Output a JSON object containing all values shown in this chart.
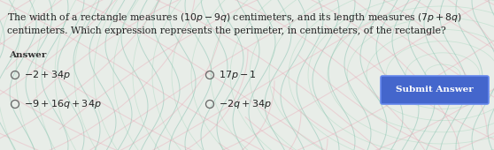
{
  "bg_color": "#e8ede8",
  "question_line1": "The width of a rectangle measures $(10p - 9q)$ centimeters, and its length measures $(7p + 8q)$",
  "question_line2": "centimeters. Which expression represents the perimeter, in centimeters, of the rectangle?",
  "answer_label": "Answer",
  "options": [
    {
      "label": "$-2 + 34p$",
      "col": 0,
      "row": 0
    },
    {
      "label": "$17p - 1$",
      "col": 1,
      "row": 0
    },
    {
      "label": "$-9 + 16q + 34p$",
      "col": 0,
      "row": 1
    },
    {
      "label": "$-2q + 34p$",
      "col": 1,
      "row": 1
    }
  ],
  "button_text": "Submit Answer",
  "button_color": "#4466cc",
  "button_text_color": "#ffffff",
  "text_color": "#222222",
  "answer_color": "#333333",
  "radio_color": "#666666",
  "figsize": [
    5.58,
    1.7
  ],
  "dpi": 100
}
